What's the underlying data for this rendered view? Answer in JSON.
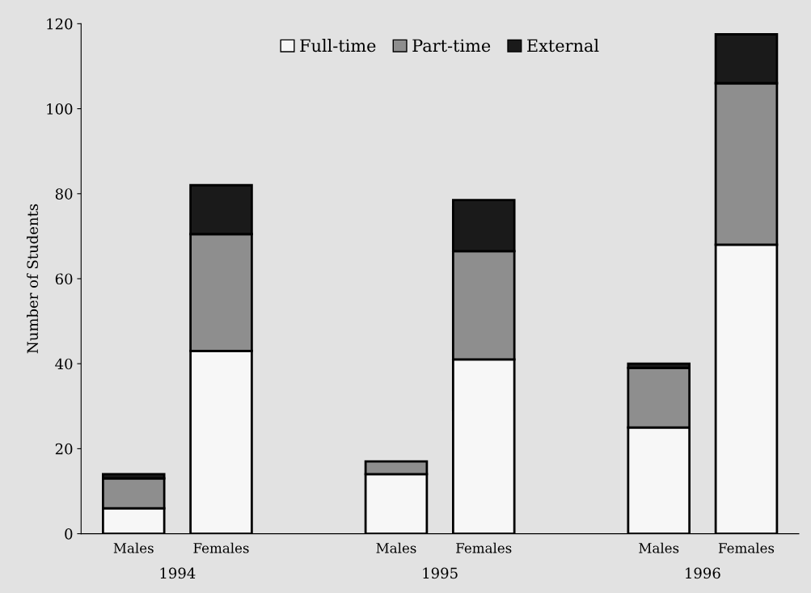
{
  "chart_data": {
    "type": "bar",
    "stacked": true,
    "ylabel": "Number of Students",
    "categories": [
      "Males",
      "Females",
      null,
      "Males",
      "Females",
      null,
      "Males",
      "Females"
    ],
    "series": [
      {
        "name": "Full-time",
        "color": "#f7f7f7",
        "values": [
          6,
          43,
          null,
          14,
          41,
          null,
          25,
          68
        ]
      },
      {
        "name": "Part-time",
        "color": "#8e8e8e",
        "values": [
          7,
          27.5,
          null,
          3,
          25.5,
          null,
          14,
          38
        ]
      },
      {
        "name": "External",
        "color": "#1a1a1a",
        "values": [
          1,
          11.5,
          null,
          null,
          12,
          null,
          1,
          11.5
        ]
      }
    ],
    "annotations": [
      "1994",
      "1995",
      "1996"
    ],
    "ylim": [
      0,
      120
    ],
    "yticks": [
      0,
      20,
      40,
      60,
      80,
      100,
      120
    ],
    "legend": "top",
    "grid": false
  }
}
